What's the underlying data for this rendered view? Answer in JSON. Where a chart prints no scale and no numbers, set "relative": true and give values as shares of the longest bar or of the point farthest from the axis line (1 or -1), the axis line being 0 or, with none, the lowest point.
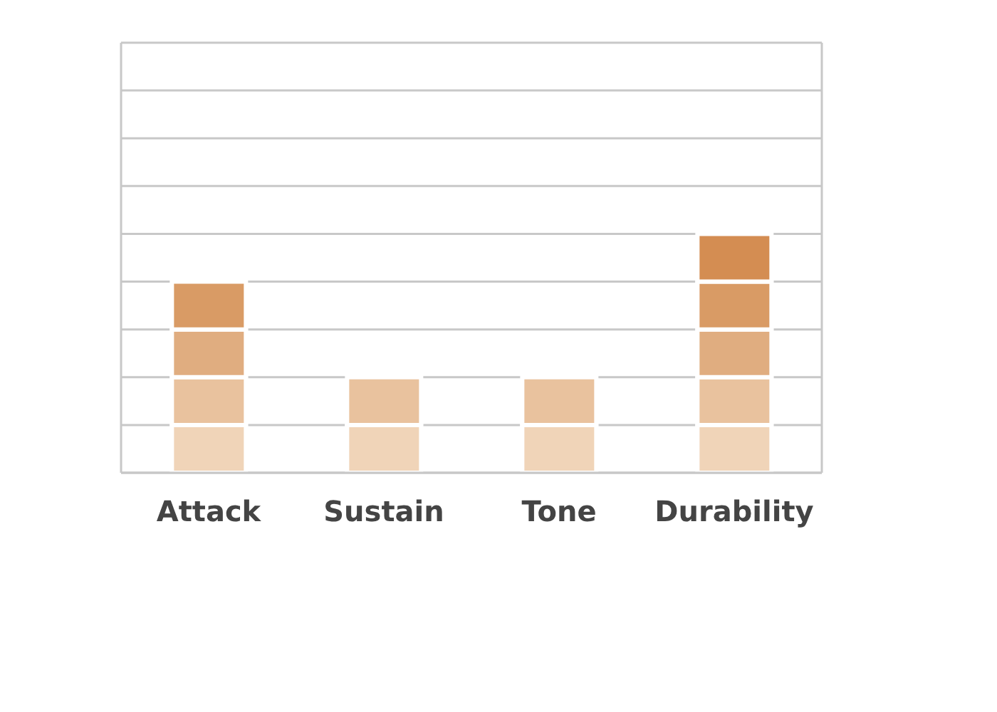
{
  "chart_data": {
    "type": "bar",
    "relative": true,
    "stacked": true,
    "categories": [
      "Attack",
      "Sustain",
      "Tone",
      "Durability"
    ],
    "series": [
      {
        "color": "#f0d4b8",
        "values": [
          0.2,
          0.2,
          0.2,
          0.2
        ]
      },
      {
        "color": "#e9c29e",
        "values": [
          0.2,
          0.2,
          0.2,
          0.2
        ]
      },
      {
        "color": "#e0ad80",
        "values": [
          0.2,
          null,
          null,
          0.2
        ]
      },
      {
        "color": "#d99b65",
        "values": [
          0.2,
          null,
          null,
          0.2
        ]
      },
      {
        "color": "#d48d52",
        "values": [
          null,
          null,
          null,
          0.2
        ]
      }
    ],
    "grid": "y"
  }
}
